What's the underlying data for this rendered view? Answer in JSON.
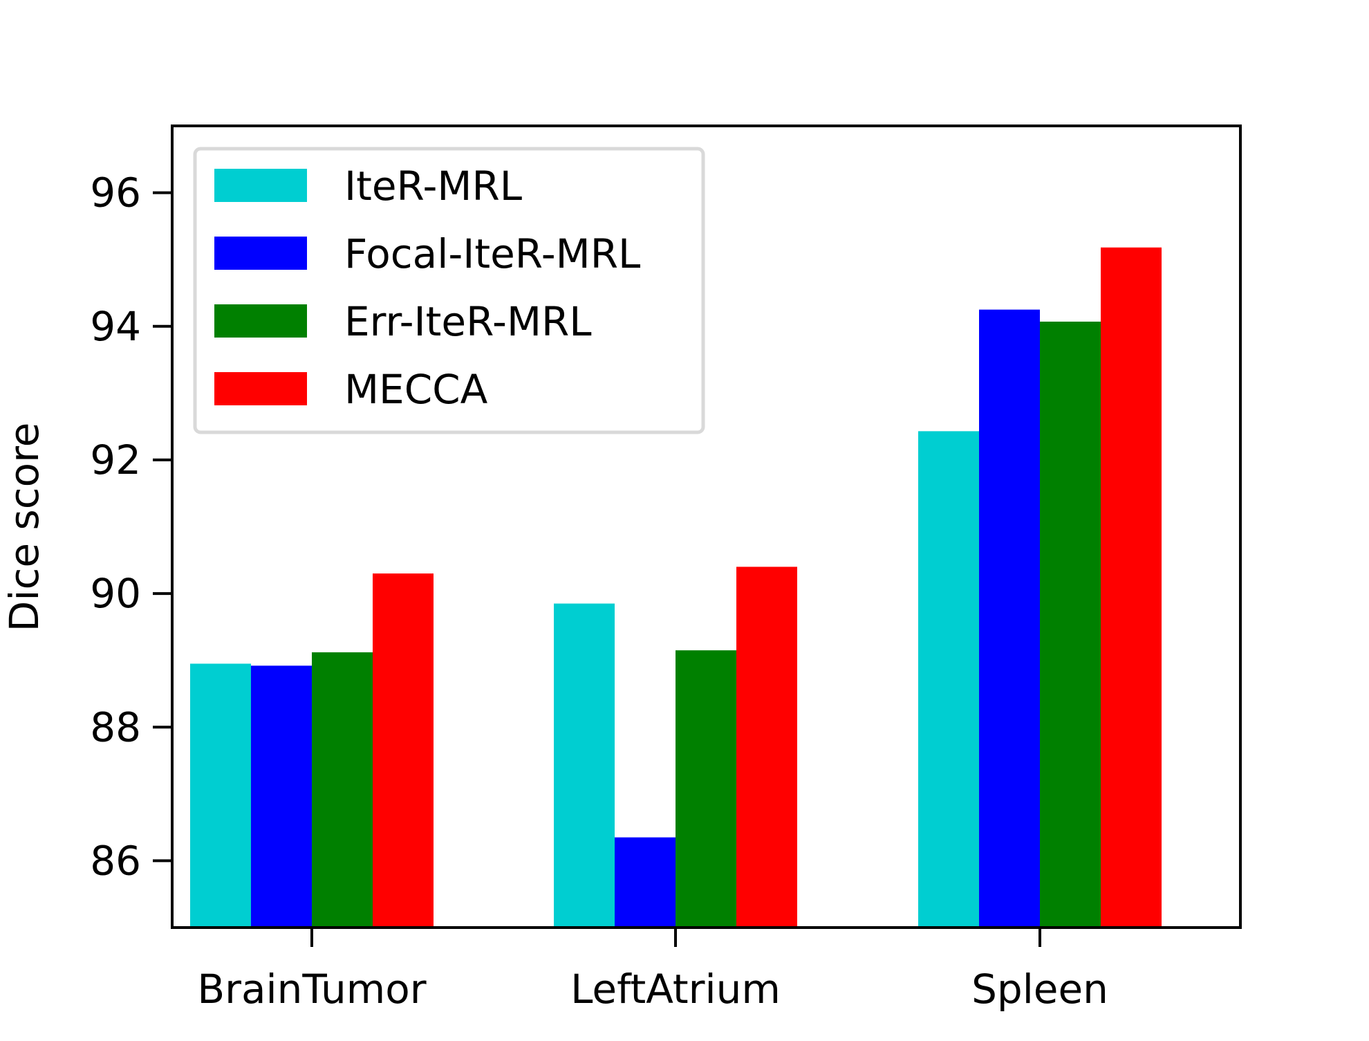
{
  "chart_data": {
    "type": "bar",
    "title": "",
    "xlabel": "",
    "ylabel": "Dice score",
    "categories": [
      "BrainTumor",
      "LeftAtrium",
      "Spleen"
    ],
    "series": [
      {
        "name": "IteR-MRL",
        "color": "#00ced1",
        "values": [
          88.95,
          89.85,
          92.43
        ]
      },
      {
        "name": "Focal-IteR-MRL",
        "color": "#0000ff",
        "values": [
          88.92,
          86.35,
          94.25
        ]
      },
      {
        "name": "Err-IteR-MRL",
        "color": "#008000",
        "values": [
          89.12,
          89.15,
          94.07
        ]
      },
      {
        "name": "MECCA",
        "color": "#ff0000",
        "values": [
          90.3,
          90.4,
          95.18
        ]
      }
    ],
    "ylim": [
      85.0,
      97.0
    ],
    "yticks": [
      86,
      88,
      90,
      92,
      94,
      96
    ],
    "legend_position": "top-left",
    "grid": false
  }
}
